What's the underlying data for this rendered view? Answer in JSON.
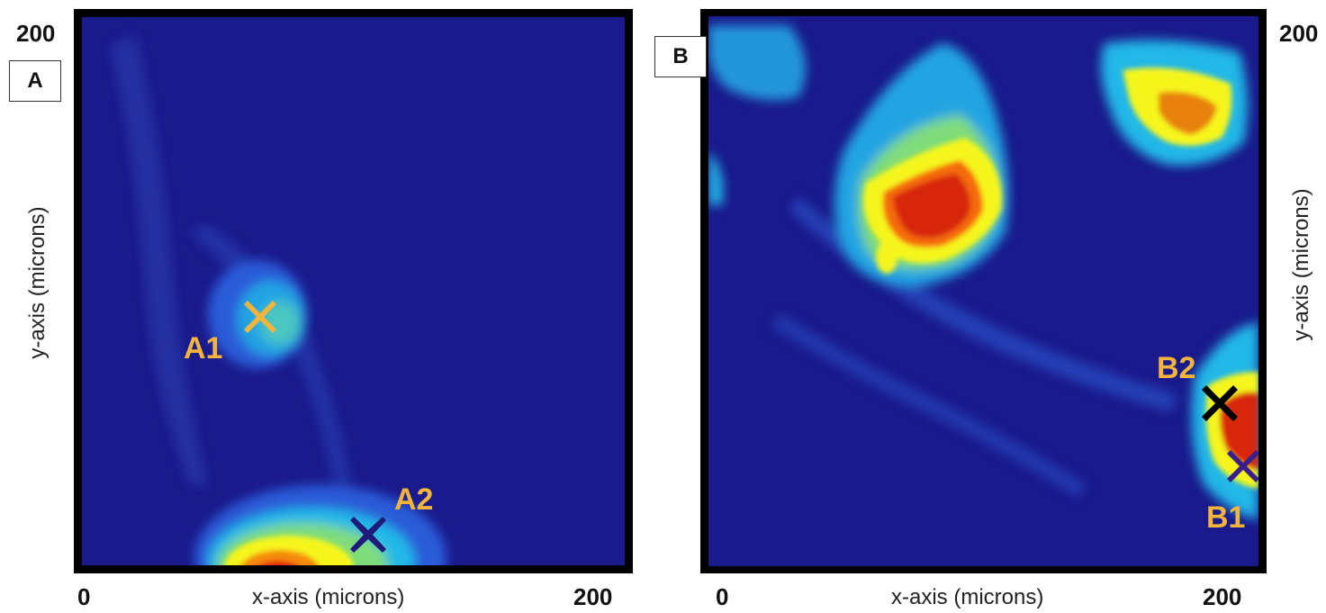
{
  "panel_a": {
    "label": "A",
    "x_min": "0",
    "x_max": "200",
    "y_max": "200",
    "xlabel": "x-axis (microns)",
    "ylabel": "y-axis (microns)",
    "markers": [
      {
        "id": "A1",
        "label": "A1",
        "color": "#f2b43a"
      },
      {
        "id": "A2",
        "label": "A2",
        "color": "#1f1b7a"
      }
    ]
  },
  "panel_b": {
    "label": "B",
    "x_min": "0",
    "x_max": "200",
    "y_max": "200",
    "xlabel": "x-axis (microns)",
    "ylabel": "y-axis (microns)",
    "markers": [
      {
        "id": "B1",
        "label": "B1",
        "color": "#3a1f8a"
      },
      {
        "id": "B2",
        "label": "B2",
        "color": "#000000"
      }
    ]
  },
  "colors": {
    "background": "#1a1a8c",
    "low": "#2a5bd8",
    "mid": "#22b8e8",
    "midhigh": "#7fdc7a",
    "high": "#f5f51a",
    "peak": "#e01a0a",
    "marker_label": "#f2b43a"
  }
}
